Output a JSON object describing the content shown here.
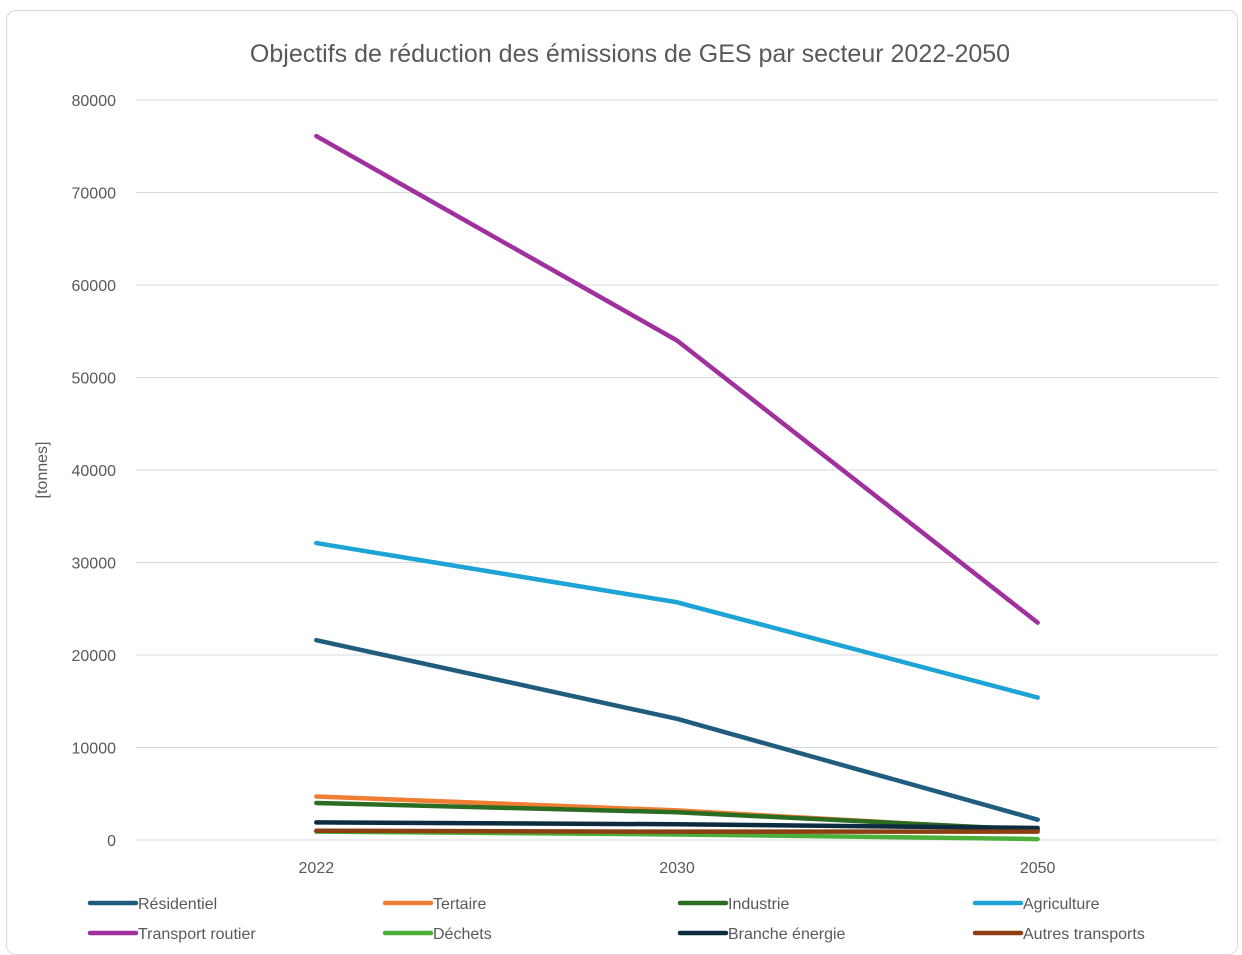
{
  "chart_data": {
    "type": "line",
    "title": "Objectifs de réduction des émissions de GES par secteur 2022-2050",
    "xlabel": "",
    "ylabel": "[tonnes]",
    "categories": [
      "2022",
      "2030",
      "2050"
    ],
    "ylim": [
      0,
      80000
    ],
    "yticks": [
      0,
      10000,
      20000,
      30000,
      40000,
      50000,
      60000,
      70000,
      80000
    ],
    "grid": true,
    "legend_position": "bottom",
    "series": [
      {
        "name": "Résidentiel",
        "color": "#1f5c7e",
        "values": [
          21600,
          13100,
          2200
        ]
      },
      {
        "name": "Tertaire",
        "color": "#ef7e32",
        "values": [
          4700,
          3200,
          1000
        ]
      },
      {
        "name": "Industrie",
        "color": "#2b6b22",
        "values": [
          4000,
          3000,
          1100
        ]
      },
      {
        "name": "Agriculture",
        "color": "#1ea3d6",
        "values": [
          32100,
          25700,
          15400
        ]
      },
      {
        "name": "Transport routier",
        "color": "#a0309e",
        "values": [
          76100,
          54000,
          23500
        ]
      },
      {
        "name": "Déchets",
        "color": "#4caf3a",
        "values": [
          900,
          600,
          100
        ]
      },
      {
        "name": "Branche énergie",
        "color": "#0e2c3f",
        "values": [
          1900,
          1700,
          1300
        ]
      },
      {
        "name": "Autres transports",
        "color": "#8b3f12",
        "values": [
          1000,
          900,
          900
        ]
      }
    ]
  }
}
